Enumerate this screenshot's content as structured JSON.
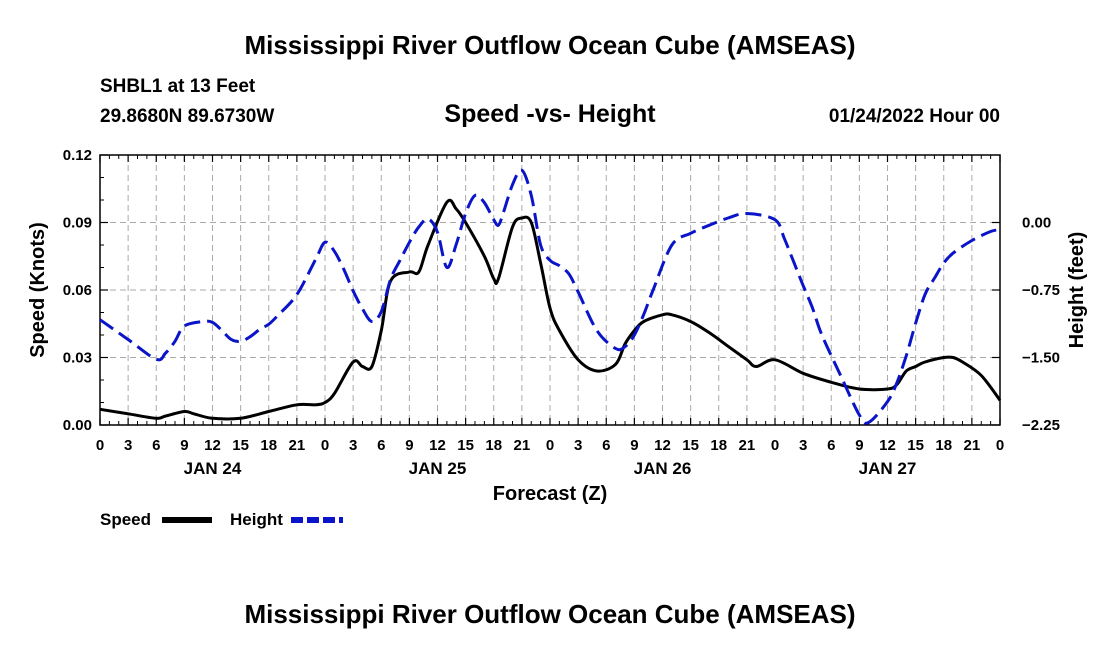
{
  "page": {
    "title": "Mississippi River Outflow Ocean Cube (AMSEAS)",
    "bottom_title": "Mississippi River Outflow Ocean Cube (AMSEAS)",
    "station": "SHBL1 at 13 Feet",
    "location": "29.8680N  89.6730W",
    "datetime": "01/24/2022 Hour 00"
  },
  "chart_data": {
    "type": "line",
    "title": "Speed -vs- Height",
    "xlabel": "Forecast (Z)",
    "ylabel": "Speed (Knots)",
    "ylabel_right": "Height (feet)",
    "x_range_hours": [
      0,
      96
    ],
    "ylim": [
      0,
      0.12
    ],
    "ylim_right": [
      -2.25,
      0.75
    ],
    "y_ticks": [
      "0.00",
      "0.03",
      "0.06",
      "0.09",
      "0.12"
    ],
    "y_ticks_right": [
      "0.00",
      "-0.75",
      "-1.50",
      "-2.25"
    ],
    "x_tick_labels": [
      "0",
      "3",
      "6",
      "9",
      "12",
      "15",
      "18",
      "21",
      "0",
      "3",
      "6",
      "9",
      "12",
      "15",
      "18",
      "21",
      "0",
      "3",
      "6",
      "9",
      "12",
      "15",
      "18",
      "21",
      "0",
      "3",
      "6",
      "9",
      "12",
      "15",
      "18",
      "21",
      "0"
    ],
    "day_labels": [
      "JAN 24",
      "JAN 25",
      "JAN 26",
      "JAN 27"
    ],
    "legend": [
      {
        "name": "Speed",
        "color": "#000000",
        "style": "solid"
      },
      {
        "name": "Height",
        "color": "#0a14c8",
        "style": "dashed"
      }
    ],
    "series": [
      {
        "name": "Speed",
        "axis": "left",
        "color": "#000000",
        "x": [
          0,
          3,
          6,
          7,
          9,
          10,
          12,
          15,
          18,
          21,
          23,
          24,
          25,
          27,
          28,
          29,
          30,
          31,
          33,
          34,
          35,
          37,
          38,
          39,
          41,
          42,
          42.5,
          44,
          45,
          46,
          47,
          48,
          49,
          51,
          53,
          55,
          56,
          57,
          58,
          60,
          61,
          63,
          65,
          67,
          69,
          70,
          72,
          75,
          78,
          81,
          84,
          85,
          86,
          87,
          88,
          90,
          91,
          92,
          94,
          96
        ],
        "values": [
          0.007,
          0.005,
          0.003,
          0.004,
          0.006,
          0.005,
          0.003,
          0.003,
          0.006,
          0.009,
          0.009,
          0.01,
          0.014,
          0.028,
          0.026,
          0.026,
          0.042,
          0.064,
          0.068,
          0.068,
          0.08,
          0.099,
          0.096,
          0.09,
          0.075,
          0.065,
          0.065,
          0.088,
          0.092,
          0.09,
          0.072,
          0.052,
          0.042,
          0.029,
          0.024,
          0.027,
          0.036,
          0.042,
          0.046,
          0.049,
          0.049,
          0.046,
          0.041,
          0.035,
          0.029,
          0.026,
          0.029,
          0.023,
          0.019,
          0.016,
          0.016,
          0.018,
          0.024,
          0.026,
          0.028,
          0.03,
          0.03,
          0.028,
          0.022,
          0.011
        ]
      },
      {
        "name": "Height",
        "axis": "right",
        "color": "#0a14c8",
        "x": [
          0,
          3,
          6,
          7,
          8,
          9,
          11,
          12,
          13,
          14,
          15,
          16,
          17,
          18,
          19,
          21,
          23,
          24,
          25,
          26,
          27,
          28,
          29,
          30,
          31,
          32,
          33,
          34,
          35,
          36,
          37,
          38,
          39,
          40,
          41,
          42,
          42.5,
          43,
          44,
          45,
          46,
          47,
          48,
          49,
          50,
          51,
          53,
          55,
          56,
          57,
          58,
          59,
          61,
          63,
          65,
          67,
          69,
          72,
          73,
          74,
          75,
          76,
          77,
          79,
          81,
          82,
          84,
          85,
          86,
          87,
          88,
          89,
          90,
          91,
          93,
          95,
          96
        ],
        "values": [
          -1.08,
          -1.3,
          -1.52,
          -1.45,
          -1.32,
          -1.15,
          -1.1,
          -1.11,
          -1.2,
          -1.3,
          -1.32,
          -1.27,
          -1.19,
          -1.13,
          -1.03,
          -0.8,
          -0.41,
          -0.22,
          -0.32,
          -0.52,
          -0.76,
          -0.96,
          -1.1,
          -0.99,
          -0.63,
          -0.42,
          -0.22,
          -0.05,
          0.04,
          -0.11,
          -0.5,
          -0.24,
          0.1,
          0.3,
          0.22,
          0.03,
          -0.03,
          0.1,
          0.42,
          0.58,
          0.3,
          -0.25,
          -0.42,
          -0.48,
          -0.57,
          -0.77,
          -1.2,
          -1.4,
          -1.38,
          -1.25,
          -1.02,
          -0.75,
          -0.25,
          -0.12,
          -0.03,
          0.05,
          0.1,
          0.03,
          -0.18,
          -0.44,
          -0.7,
          -0.95,
          -1.25,
          -1.7,
          -2.14,
          -2.22,
          -1.99,
          -1.78,
          -1.48,
          -1.12,
          -0.8,
          -0.62,
          -0.45,
          -0.34,
          -0.2,
          -0.1,
          -0.08
        ]
      }
    ]
  }
}
